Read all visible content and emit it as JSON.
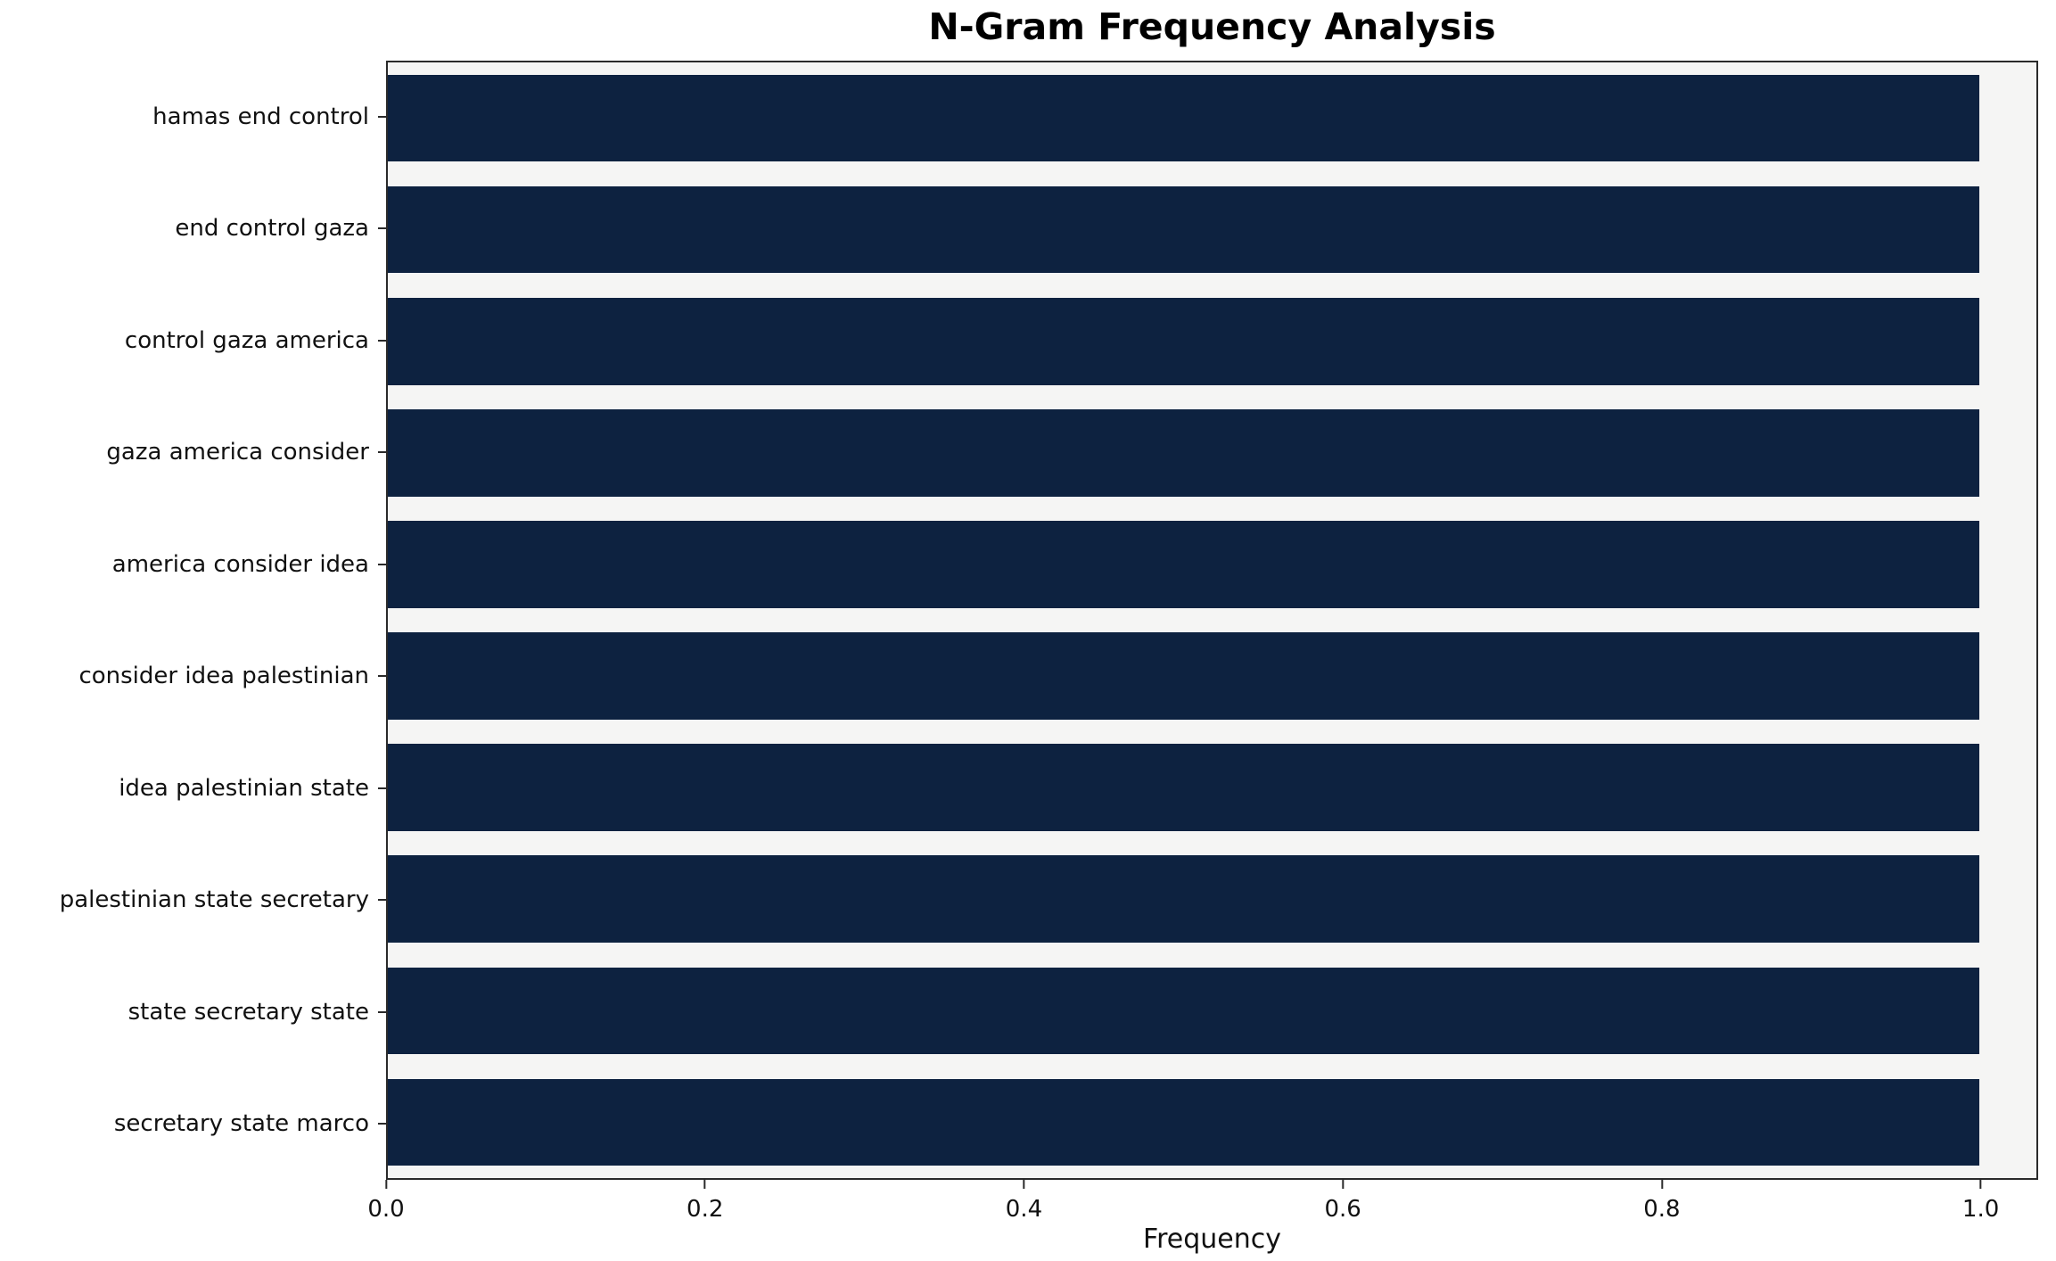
{
  "chart_data": {
    "type": "bar",
    "orientation": "horizontal",
    "title": "N-Gram Frequency Analysis",
    "xlabel": "Frequency",
    "ylabel": "",
    "categories": [
      "hamas end control",
      "end control gaza",
      "control gaza america",
      "gaza america consider",
      "america consider idea",
      "consider idea palestinian",
      "idea palestinian state",
      "palestinian state secretary",
      "state secretary state",
      "secretary state marco"
    ],
    "values": [
      1.0,
      1.0,
      1.0,
      1.0,
      1.0,
      1.0,
      1.0,
      1.0,
      1.0,
      1.0
    ],
    "x_ticks": [
      "0.0",
      "0.2",
      "0.4",
      "0.6",
      "0.8",
      "1.0"
    ],
    "xlim": [
      0,
      1.036
    ],
    "bar_color": "#0d2240",
    "plot_bg_color": "#f5f5f4",
    "figure_bg_color": "#ffffff",
    "grid": false,
    "legend": null
  }
}
